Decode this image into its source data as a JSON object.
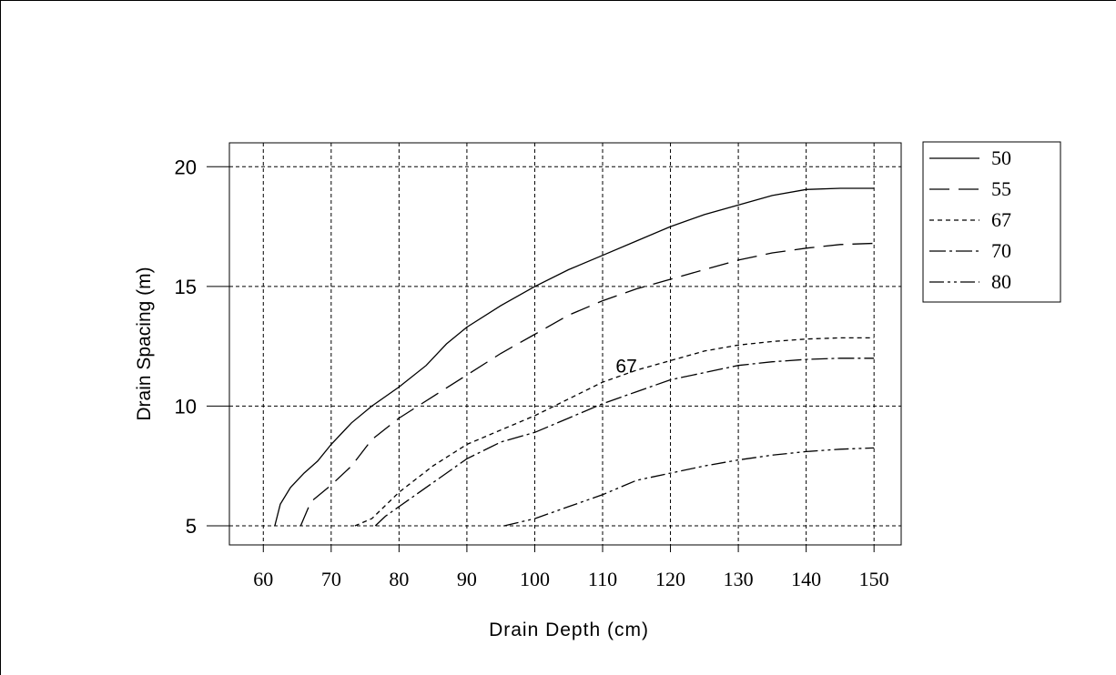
{
  "chart_data": {
    "type": "line",
    "xlabel": "Drain Depth (cm)",
    "ylabel": "Drain Spacing (m)",
    "xlim": [
      55,
      154
    ],
    "ylim": [
      4.2,
      21.0
    ],
    "xticks": [
      60,
      70,
      80,
      90,
      100,
      110,
      120,
      130,
      140,
      150
    ],
    "yticks": [
      5,
      10,
      15,
      20
    ],
    "grid": true,
    "legend_position": "right",
    "annotations": [
      {
        "text": "67",
        "x": 113.5,
        "y": 11.7
      }
    ],
    "series": [
      {
        "name": "50",
        "dash": "none",
        "x": [
          61.7,
          62.5,
          64,
          66,
          68,
          70,
          73,
          76,
          80,
          84,
          87,
          90,
          95,
          100,
          105,
          110,
          115,
          120,
          125,
          130,
          135,
          140,
          145,
          150
        ],
        "y": [
          5.0,
          5.9,
          6.6,
          7.2,
          7.7,
          8.4,
          9.3,
          10.0,
          10.8,
          11.7,
          12.6,
          13.3,
          14.2,
          15.0,
          15.7,
          16.3,
          16.9,
          17.5,
          18.0,
          18.4,
          18.8,
          19.05,
          19.1,
          19.1
        ]
      },
      {
        "name": "55",
        "dash": "22 10",
        "x": [
          65.5,
          67,
          70,
          73,
          76,
          80,
          85,
          90,
          95,
          100,
          105,
          110,
          115,
          120,
          125,
          130,
          135,
          140,
          145,
          150
        ],
        "y": [
          5.0,
          6.0,
          6.7,
          7.5,
          8.6,
          9.5,
          10.4,
          11.3,
          12.2,
          13.0,
          13.8,
          14.4,
          14.9,
          15.3,
          15.7,
          16.1,
          16.4,
          16.6,
          16.75,
          16.8
        ]
      },
      {
        "name": "67",
        "dash": "5 4",
        "x": [
          73.5,
          76,
          80,
          85,
          90,
          95,
          100,
          105,
          110,
          115,
          120,
          125,
          130,
          135,
          140,
          145,
          150
        ],
        "y": [
          5.0,
          5.3,
          6.4,
          7.5,
          8.4,
          9.0,
          9.6,
          10.3,
          11.0,
          11.5,
          11.9,
          12.3,
          12.55,
          12.7,
          12.8,
          12.85,
          12.85
        ]
      },
      {
        "name": "70",
        "dash": "18 4 3 4",
        "x": [
          76.5,
          78,
          80,
          85,
          90,
          95,
          100,
          105,
          110,
          115,
          120,
          125,
          130,
          135,
          140,
          145,
          150
        ],
        "y": [
          5.0,
          5.4,
          5.8,
          6.8,
          7.8,
          8.5,
          8.9,
          9.5,
          10.1,
          10.6,
          11.1,
          11.4,
          11.7,
          11.85,
          11.95,
          12.0,
          12.0
        ]
      },
      {
        "name": "80",
        "dash": "16 4 3 4 3 4",
        "x": [
          95.5,
          100,
          105,
          110,
          115,
          120,
          125,
          130,
          135,
          140,
          145,
          150
        ],
        "y": [
          5.0,
          5.3,
          5.8,
          6.3,
          6.9,
          7.2,
          7.5,
          7.75,
          7.95,
          8.1,
          8.2,
          8.25
        ]
      }
    ]
  }
}
